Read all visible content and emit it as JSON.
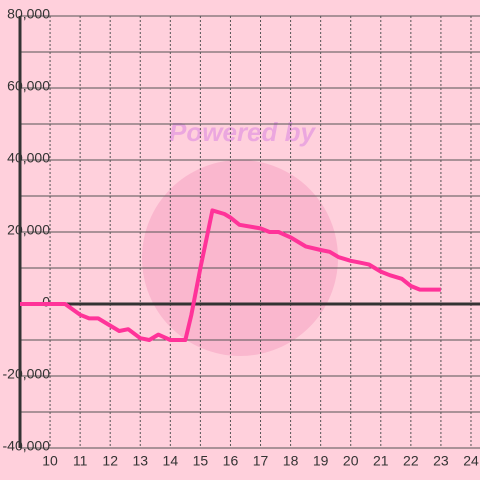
{
  "chart_data": {
    "type": "line",
    "watermark": "Powered by",
    "x": [
      9,
      10.5,
      11,
      11.3,
      11.6,
      12,
      12.3,
      12.6,
      13,
      13.3,
      13.6,
      14,
      14.5,
      14.7,
      15,
      15.4,
      15.8,
      16,
      16.3,
      17,
      17.3,
      17.6,
      18,
      18.5,
      19,
      19.3,
      19.6,
      20,
      20.3,
      20.6,
      21,
      21.3,
      21.7,
      22,
      22.3,
      23
    ],
    "series": [
      {
        "color": "#ff3399",
        "values": [
          0,
          0,
          -3000,
          -4000,
          -4000,
          -6000,
          -7500,
          -7000,
          -9500,
          -10000,
          -8500,
          -10000,
          -10000,
          -3000,
          10000,
          26000,
          25000,
          24000,
          22000,
          21000,
          20000,
          20000,
          18500,
          16000,
          15000,
          14500,
          13000,
          12000,
          11500,
          11000,
          9000,
          8000,
          7000,
          5000,
          4000,
          4000
        ]
      }
    ],
    "xlim": [
      9,
      24.3
    ],
    "xticks": [
      10,
      11,
      12,
      13,
      14,
      15,
      16,
      17,
      18,
      19,
      20,
      21,
      22,
      23,
      24
    ],
    "ylim": [
      -40000,
      80000
    ],
    "yticks": [
      {
        "value": -40000,
        "label": "-40,000"
      },
      {
        "value": -20000,
        "label": "-20,000"
      },
      0,
      {
        "value": 20000,
        "label": "20,000"
      },
      {
        "value": 40000,
        "label": "40,000"
      },
      {
        "value": 60000,
        "label": "60,000"
      },
      {
        "value": 80000,
        "label": "80,000"
      }
    ],
    "y_minor_ticks": [
      -30000,
      -10000,
      10000,
      30000,
      50000,
      70000
    ],
    "grid": true
  }
}
